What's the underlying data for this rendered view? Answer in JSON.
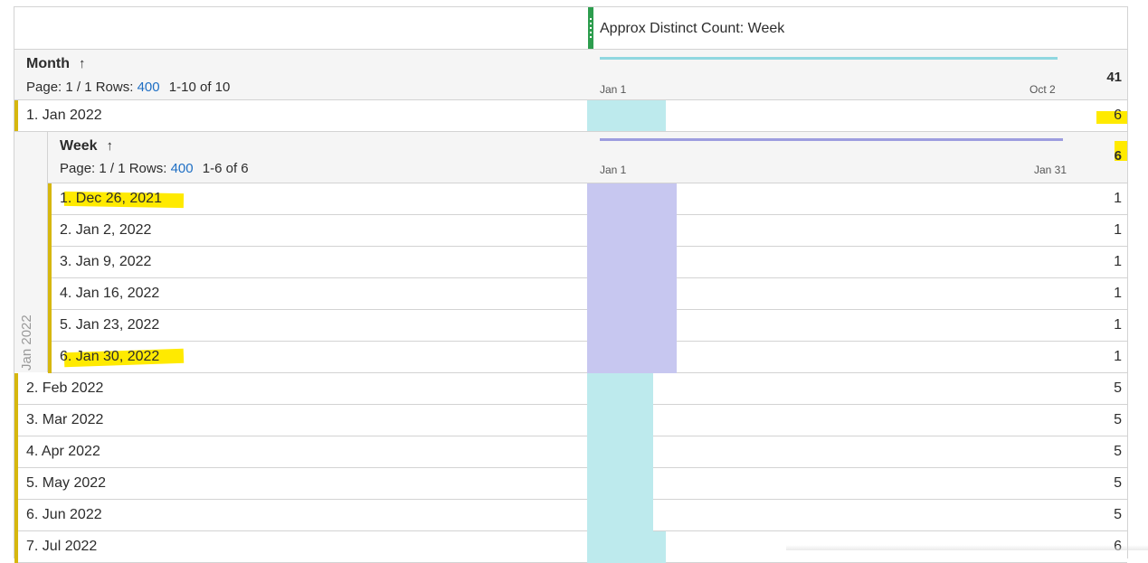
{
  "metric": {
    "title": "Approx Distinct Count: Week"
  },
  "month_header": {
    "title": "Month",
    "page_label": "Page: 1 / 1 Rows:",
    "rows_value": "400",
    "range": "1-10 of 10",
    "axis_start": "Jan 1",
    "axis_end": "Oct 2",
    "total": "41"
  },
  "week_breakdown": {
    "side_label": "Jan 2022",
    "title": "Week",
    "page_label": "Page: 1 / 1 Rows:",
    "rows_value": "400",
    "range": "1-6 of 6",
    "axis_start": "Jan 1",
    "axis_end": "Jan 31",
    "total": "6",
    "rows": [
      {
        "label": "1.  Dec 26, 2021",
        "value": "1",
        "bar": 1.0,
        "highlight": true
      },
      {
        "label": "2.  Jan 2, 2022",
        "value": "1",
        "bar": 1.0,
        "highlight": false
      },
      {
        "label": "3.  Jan 9, 2022",
        "value": "1",
        "bar": 1.0,
        "highlight": false
      },
      {
        "label": "4.  Jan 16, 2022",
        "value": "1",
        "bar": 1.0,
        "highlight": false
      },
      {
        "label": "5.  Jan 23, 2022",
        "value": "1",
        "bar": 1.0,
        "highlight": false
      },
      {
        "label": "6.  Jan 30, 2022",
        "value": "1",
        "bar": 1.0,
        "highlight": true
      }
    ]
  },
  "month_rows": [
    {
      "label": "1.  Jan 2022",
      "value": "6"
    },
    {
      "label": "2.  Feb 2022",
      "value": "5"
    },
    {
      "label": "3.  Mar 2022",
      "value": "5"
    },
    {
      "label": "4.  Apr 2022",
      "value": "5"
    },
    {
      "label": "5.  May 2022",
      "value": "5"
    },
    {
      "label": "6.  Jun 2022",
      "value": "5"
    },
    {
      "label": "7.  Jul 2022",
      "value": "6"
    }
  ],
  "colors": {
    "month_bar": "#bdeaed",
    "week_bar": "#c7c7f0",
    "month_line": "#8fd7e0",
    "week_line": "#9d9ddf",
    "row_accent": "#d6b70f",
    "highlight": "#ffea00"
  }
}
